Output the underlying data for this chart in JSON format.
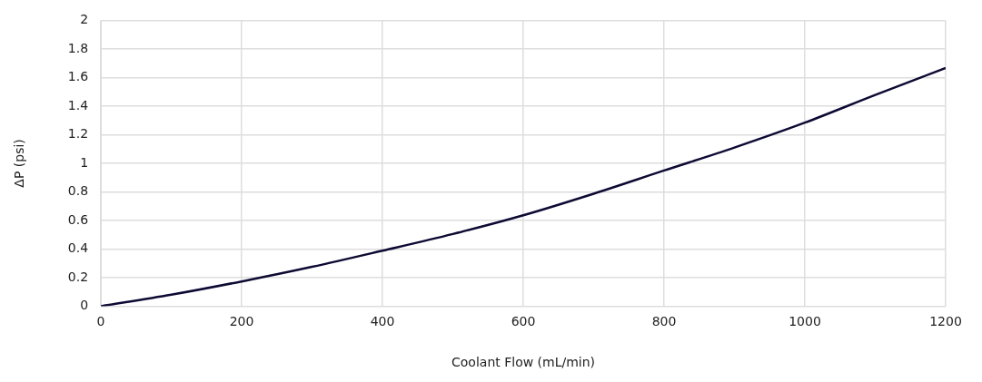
{
  "chart_data": {
    "type": "line",
    "xlabel": "Coolant Flow (mL/min)",
    "ylabel": "ΔP (psi)",
    "x": [
      0,
      100,
      200,
      300,
      400,
      500,
      600,
      700,
      800,
      900,
      1000,
      1100,
      1200
    ],
    "series": [
      {
        "color": "#0d0a33",
        "values": [
          0,
          0.08,
          0.173,
          0.275,
          0.388,
          0.505,
          0.636,
          0.787,
          0.949,
          1.11,
          1.284,
          1.478,
          1.666
        ]
      }
    ],
    "xlim": [
      0,
      1200
    ],
    "xticks": [
      0,
      200,
      400,
      600,
      800,
      1000,
      1200
    ],
    "ylim": [
      0,
      2
    ],
    "yticks": [
      0,
      0.2,
      0.4,
      0.6,
      0.8,
      1,
      1.2,
      1.4,
      1.6,
      1.8,
      2
    ],
    "grid": true,
    "legend": false,
    "marker": "none",
    "line_style": "solid"
  }
}
